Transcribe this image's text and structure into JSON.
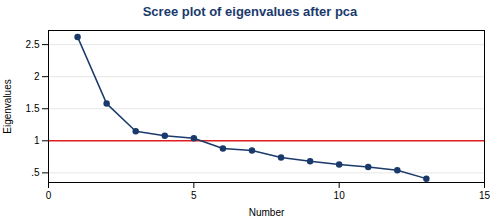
{
  "chart_data": {
    "type": "line",
    "title": "Scree plot of eigenvalues after pca",
    "xlabel": "Number",
    "ylabel": "Eigenvalues",
    "x": [
      1,
      2,
      3,
      4,
      5,
      6,
      7,
      8,
      9,
      10,
      11,
      12,
      13
    ],
    "values": [
      2.62,
      1.58,
      1.15,
      1.08,
      1.04,
      0.88,
      0.85,
      0.74,
      0.68,
      0.63,
      0.59,
      0.54,
      0.41
    ],
    "color": "#1a3a6b",
    "marker": "circle",
    "reference_line": {
      "y": 1.0,
      "color": "#e02020"
    },
    "xlim": [
      0,
      15
    ],
    "xticks": [
      0,
      5,
      10,
      15
    ],
    "ylim": [
      0.35,
      2.72
    ],
    "yticks": [
      {
        "value": 0.5,
        "label": ".5"
      },
      1,
      1.5,
      2,
      2.5
    ],
    "grid": "y"
  }
}
